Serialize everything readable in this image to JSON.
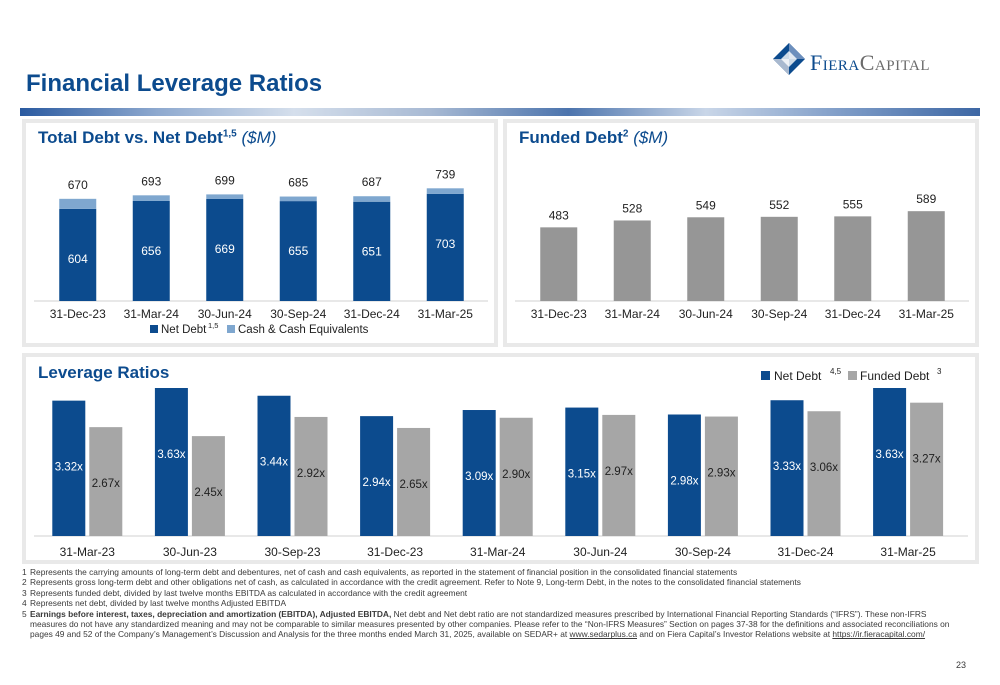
{
  "page": {
    "title": "Financial Leverage Ratios",
    "page_number": "23",
    "logo_text_main": "Fiera",
    "logo_text_secondary": "Capital"
  },
  "colors": {
    "navy": "#0c4b8e",
    "light_blue": "#7fa7cf",
    "gray": "#a6a6a6",
    "funded_gray": "#969696"
  },
  "panels": {
    "total_debt": {
      "title": "Total Debt vs. Net Debt",
      "title_sup": "1,5",
      "title_unit": "($M)"
    },
    "funded_debt": {
      "title": "Funded Debt",
      "title_sup": "2",
      "title_unit": "($M)"
    },
    "leverage": {
      "title": "Leverage Ratios"
    }
  },
  "chart_data": [
    {
      "type": "bar",
      "stacked": true,
      "categories": [
        "31-Dec-23",
        "31-Mar-24",
        "30-Jun-24",
        "30-Sep-24",
        "31-Dec-24",
        "31-Mar-25"
      ],
      "series": [
        {
          "name": "Net Debt",
          "name_sup": "1,5",
          "values": [
            604,
            656,
            669,
            655,
            651,
            703
          ],
          "color": "#0c4b8e"
        },
        {
          "name": "Cash & Cash Equivalents",
          "values": [
            66,
            37,
            30,
            30,
            36,
            36
          ],
          "color": "#7fa7cf"
        }
      ],
      "totals": [
        670,
        693,
        699,
        685,
        687,
        739
      ],
      "legend": "bottom",
      "ylim": [
        0,
        800
      ]
    },
    {
      "type": "bar",
      "categories": [
        "31-Dec-23",
        "31-Mar-24",
        "30-Jun-24",
        "30-Sep-24",
        "31-Dec-24",
        "31-Mar-25"
      ],
      "series": [
        {
          "values": [
            483,
            528,
            549,
            552,
            555,
            589
          ],
          "color": "#969696"
        }
      ],
      "ylim": [
        0,
        800
      ]
    },
    {
      "type": "bar",
      "grouped": true,
      "categories": [
        "31-Mar-23",
        "30-Jun-23",
        "30-Sep-23",
        "31-Dec-23",
        "31-Mar-24",
        "30-Jun-24",
        "30-Sep-24",
        "31-Dec-24",
        "31-Mar-25"
      ],
      "series": [
        {
          "name": "Net Debt",
          "name_sup": "4,5",
          "values": [
            3.32,
            3.63,
            3.44,
            2.94,
            3.09,
            3.15,
            2.98,
            3.33,
            3.63
          ],
          "labels": [
            "3.32x",
            "3.63x",
            "3.44x",
            "2.94x",
            "3.09x",
            "3.15x",
            "2.98x",
            "3.33x",
            "3.63x"
          ],
          "color": "#0c4b8e"
        },
        {
          "name": "Funded Debt",
          "name_sup": "3",
          "values": [
            2.67,
            2.45,
            2.92,
            2.65,
            2.9,
            2.97,
            2.93,
            3.06,
            3.27
          ],
          "labels": [
            "2.67x",
            "2.45x",
            "2.92x",
            "2.65x",
            "2.90x",
            "2.97x",
            "2.93x",
            "3.06x",
            "3.27x"
          ],
          "color": "#a6a6a6"
        }
      ],
      "legend": "top-right",
      "ylim": [
        0,
        3.63
      ]
    }
  ],
  "footnotes": [
    {
      "num": "1",
      "text": "Represents the carrying amounts of long-term debt and debentures, net of cash and cash equivalents, as reported in the statement of financial position in the consolidated financial statements"
    },
    {
      "num": "2",
      "text": "Represents gross long-term debt and other obligations net of cash, as calculated in accordance with the credit agreement. Refer to Note 9, Long-term Debt, in the notes to the consolidated financial statements"
    },
    {
      "num": "3",
      "text": "Represents funded debt, divided by last twelve months EBITDA as calculated in accordance with the credit agreement"
    },
    {
      "num": "4",
      "text": "Represents net debt, divided by last twelve months Adjusted EBITDA"
    },
    {
      "num": "5",
      "text_bold": "Earnings before interest, taxes, depreciation and amortization (EBITDA), Adjusted EBITDA,",
      "text": " Net debt and Net debt ratio are not standardized measures prescribed by International Financial Reporting Standards (“IFRS”). These non-IFRS measures do not have any standardized meaning and may not be comparable to similar measures presented by other companies. Please refer to the “Non-IFRS Measures” Section on pages 37-38 for the definitions and associated reconciliations on pages 49 and 52 of the Company’s Management’s Discussion and Analysis for the three months ended March 31, 2025, available on SEDAR+ at ",
      "link1": "www.sedarplus.ca",
      "text_mid": " and on Fiera Capital’s Investor Relations website at ",
      "link2": "https://ir.fieracapital.com/"
    }
  ]
}
